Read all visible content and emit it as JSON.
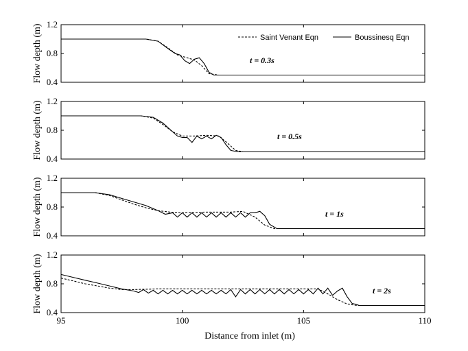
{
  "chart_data": {
    "type": "line",
    "xlabel": "Distance from inlet (m)",
    "xlim": [
      95,
      110
    ],
    "xticks": [
      95,
      100,
      105,
      110
    ],
    "legend": {
      "placement": "top-right",
      "entries": [
        {
          "name": "Saint Venant Eqn",
          "style": "dashed"
        },
        {
          "name": "Boussinesq Eqn",
          "style": "solid"
        }
      ]
    },
    "panels": [
      {
        "annotation": "t = 0.3s",
        "ylabel": "Flow depth (m)",
        "ylim": [
          0.4,
          1.2
        ],
        "yticks": [
          0.4,
          0.8,
          1.2
        ],
        "series": [
          {
            "name": "Saint Venant Eqn",
            "x": [
              95,
              98.5,
              99,
              99.4,
              99.8,
              100.2,
              100.5,
              100.8,
              101.1,
              101.5,
              110
            ],
            "y": [
              1.0,
              1.0,
              0.97,
              0.88,
              0.78,
              0.74,
              0.71,
              0.63,
              0.52,
              0.5,
              0.5
            ]
          },
          {
            "name": "Boussinesq Eqn",
            "x": [
              95,
              98.5,
              99,
              99.4,
              99.7,
              99.9,
              100.1,
              100.3,
              100.5,
              100.7,
              100.9,
              101.1,
              101.3,
              101.6,
              110
            ],
            "y": [
              1.0,
              1.0,
              0.97,
              0.87,
              0.8,
              0.78,
              0.7,
              0.66,
              0.72,
              0.74,
              0.66,
              0.54,
              0.5,
              0.5,
              0.5
            ]
          }
        ]
      },
      {
        "annotation": "t = 0.5s",
        "ylabel": "Flow depth (m)",
        "ylim": [
          0.4,
          1.2
        ],
        "yticks": [
          0.4,
          0.8,
          1.2
        ],
        "series": [
          {
            "name": "Saint Venant Eqn",
            "x": [
              95,
              98.3,
              98.8,
              99.2,
              99.6,
              100,
              100.5,
              101,
              101.5,
              101.8,
              102.2,
              102.5,
              110
            ],
            "y": [
              1.0,
              1.0,
              0.97,
              0.88,
              0.78,
              0.72,
              0.72,
              0.73,
              0.72,
              0.64,
              0.52,
              0.5,
              0.5
            ]
          },
          {
            "name": "Boussinesq Eqn",
            "x": [
              95,
              98.3,
              98.8,
              99.2,
              99.6,
              99.8,
              100,
              100.2,
              100.4,
              100.6,
              100.8,
              101,
              101.2,
              101.4,
              101.6,
              101.8,
              102,
              102.3,
              110
            ],
            "y": [
              1.0,
              1.0,
              0.98,
              0.9,
              0.78,
              0.72,
              0.7,
              0.7,
              0.63,
              0.72,
              0.68,
              0.72,
              0.68,
              0.73,
              0.7,
              0.6,
              0.52,
              0.5,
              0.5
            ]
          }
        ]
      },
      {
        "annotation": "t = 1s",
        "ylabel": "Flow depth (m)",
        "ylim": [
          0.4,
          1.2
        ],
        "yticks": [
          0.4,
          0.8,
          1.2
        ],
        "series": [
          {
            "name": "Saint Venant Eqn",
            "x": [
              95,
              96.4,
              97,
              97.5,
              98,
              98.5,
              99,
              99.5,
              100,
              101,
              102,
              102.5,
              103,
              103.4,
              103.8,
              110
            ],
            "y": [
              1.0,
              1.0,
              0.96,
              0.9,
              0.84,
              0.79,
              0.75,
              0.73,
              0.72,
              0.73,
              0.73,
              0.74,
              0.66,
              0.55,
              0.5,
              0.5
            ]
          },
          {
            "name": "Boussinesq Eqn",
            "x": [
              95,
              96.4,
              97,
              97.5,
              98,
              98.5,
              99,
              99.3,
              99.6,
              99.8,
              100,
              100.2,
              100.4,
              100.6,
              100.8,
              101,
              101.2,
              101.4,
              101.6,
              101.8,
              102,
              102.2,
              102.4,
              102.6,
              102.8,
              103,
              103.2,
              103.4,
              103.6,
              103.9,
              110
            ],
            "y": [
              1.0,
              1.0,
              0.97,
              0.92,
              0.87,
              0.82,
              0.75,
              0.7,
              0.72,
              0.66,
              0.72,
              0.66,
              0.72,
              0.66,
              0.72,
              0.66,
              0.72,
              0.66,
              0.72,
              0.66,
              0.72,
              0.66,
              0.72,
              0.66,
              0.72,
              0.72,
              0.74,
              0.68,
              0.56,
              0.5,
              0.5
            ]
          }
        ]
      },
      {
        "annotation": "t = 2s",
        "ylabel": "Flow depth (m)",
        "ylim": [
          0.4,
          1.2
        ],
        "yticks": [
          0.4,
          0.8,
          1.2
        ],
        "series": [
          {
            "name": "Saint Venant Eqn",
            "x": [
              95,
              95.5,
              96,
              96.5,
              97,
              97.5,
              98,
              99,
              100,
              101,
              102,
              103,
              104,
              105,
              105.6,
              106,
              106.4,
              106.8,
              107.2,
              110
            ],
            "y": [
              0.88,
              0.84,
              0.8,
              0.77,
              0.74,
              0.72,
              0.72,
              0.73,
              0.73,
              0.73,
              0.73,
              0.73,
              0.73,
              0.73,
              0.73,
              0.66,
              0.58,
              0.52,
              0.5,
              0.5
            ]
          },
          {
            "name": "Boussinesq Eqn",
            "x": [
              95,
              95.5,
              96,
              96.5,
              97,
              97.5,
              98,
              98.2,
              98.4,
              98.6,
              98.8,
              99,
              99.2,
              99.4,
              99.6,
              99.8,
              100,
              100.2,
              100.4,
              100.6,
              100.8,
              101,
              101.2,
              101.4,
              101.6,
              101.8,
              102,
              102.2,
              102.4,
              102.6,
              102.8,
              103,
              103.2,
              103.4,
              103.6,
              103.8,
              104,
              104.2,
              104.4,
              104.6,
              104.8,
              105,
              105.2,
              105.4,
              105.6,
              105.8,
              106,
              106.2,
              106.4,
              106.6,
              106.8,
              107,
              107.3,
              107.6,
              110
            ],
            "y": [
              0.93,
              0.89,
              0.85,
              0.81,
              0.77,
              0.73,
              0.7,
              0.68,
              0.72,
              0.67,
              0.71,
              0.66,
              0.71,
              0.66,
              0.71,
              0.66,
              0.71,
              0.66,
              0.71,
              0.66,
              0.71,
              0.66,
              0.71,
              0.66,
              0.71,
              0.66,
              0.72,
              0.62,
              0.72,
              0.66,
              0.72,
              0.66,
              0.72,
              0.66,
              0.72,
              0.66,
              0.72,
              0.66,
              0.72,
              0.66,
              0.72,
              0.66,
              0.72,
              0.66,
              0.74,
              0.66,
              0.74,
              0.64,
              0.7,
              0.74,
              0.62,
              0.53,
              0.5,
              0.5,
              0.5
            ]
          }
        ]
      }
    ]
  }
}
